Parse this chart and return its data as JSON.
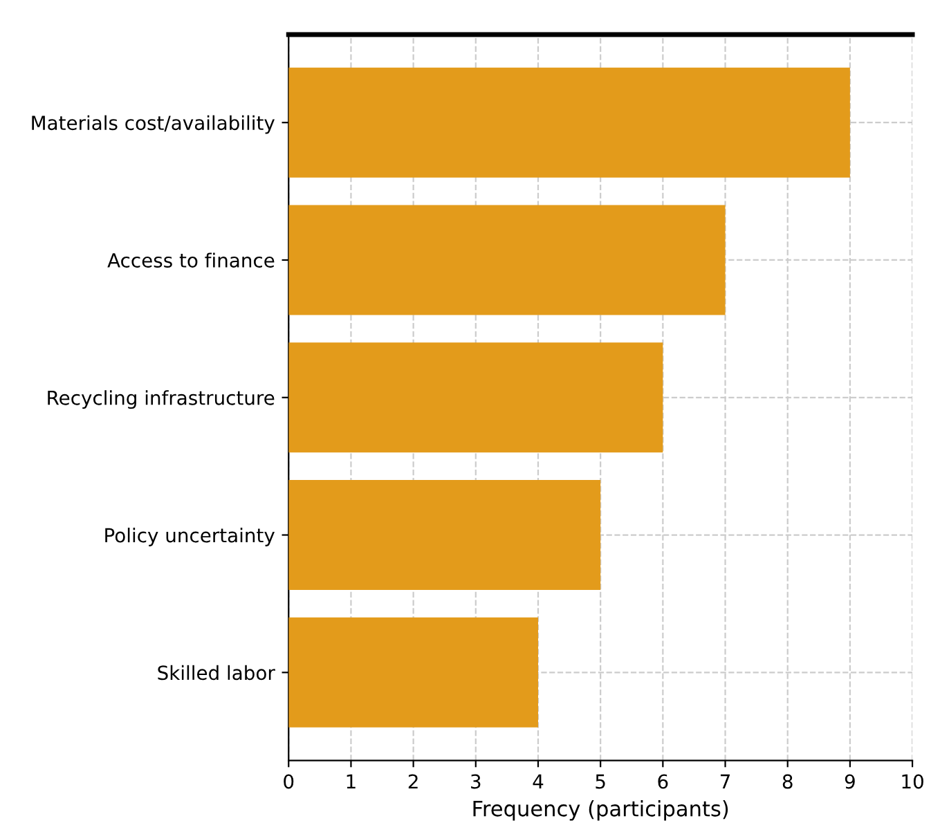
{
  "chart_data": {
    "type": "bar",
    "orientation": "horizontal",
    "xlabel": "Frequency (participants)",
    "categories": [
      "Materials cost/availability",
      "Access to finance",
      "Recycling infrastructure",
      "Policy uncertainty",
      "Skilled labor"
    ],
    "values": [
      9,
      7,
      6,
      5,
      4
    ],
    "color": "#e39b1b",
    "xlim": [
      0,
      10
    ],
    "xticks": [
      0,
      1,
      2,
      3,
      4,
      5,
      6,
      7,
      8,
      9,
      10
    ],
    "grid": true
  }
}
